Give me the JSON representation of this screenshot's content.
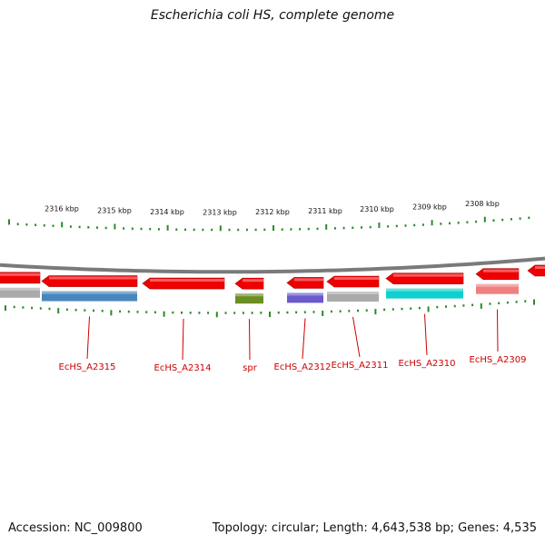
{
  "title": "Escherichia coli HS, complete genome",
  "footer": {
    "accession": "Accession: NC_009800",
    "summary": "Topology: circular; Length: 4,643,538 bp; Genes: 4,535"
  },
  "colors": {
    "forward_strand": "#ee0000",
    "backbone": "#7a7a7a",
    "tick": "#2a8a2a",
    "label": "#cc0000"
  },
  "scale_ticks": [
    {
      "label": "2316 kbp"
    },
    {
      "label": "2315 kbp"
    },
    {
      "label": "2314 kbp"
    },
    {
      "label": "2313 kbp"
    },
    {
      "label": "2312 kbp"
    },
    {
      "label": "2311 kbp"
    },
    {
      "label": "2310 kbp"
    },
    {
      "label": "2309 kbp"
    },
    {
      "label": "2308 kbp"
    }
  ],
  "genes": [
    {
      "name": "",
      "cog_color": "#aaaaaa"
    },
    {
      "name": "EcHS_A2315",
      "cog_color": "#4a86be"
    },
    {
      "name": "EcHS_A2314",
      "cog_color": null
    },
    {
      "name": "spr",
      "cog_color": "#6b8e23"
    },
    {
      "name": "EcHS_A2312",
      "cog_color": "#6a5acd"
    },
    {
      "name": "EcHS_A2311",
      "cog_color": "#aaaaaa"
    },
    {
      "name": "EcHS_A2310",
      "cog_color": "#10cfcf"
    },
    {
      "name": "EcHS_A2309",
      "cog_color": "#f08080"
    },
    {
      "name": "",
      "cog_color": null
    }
  ]
}
